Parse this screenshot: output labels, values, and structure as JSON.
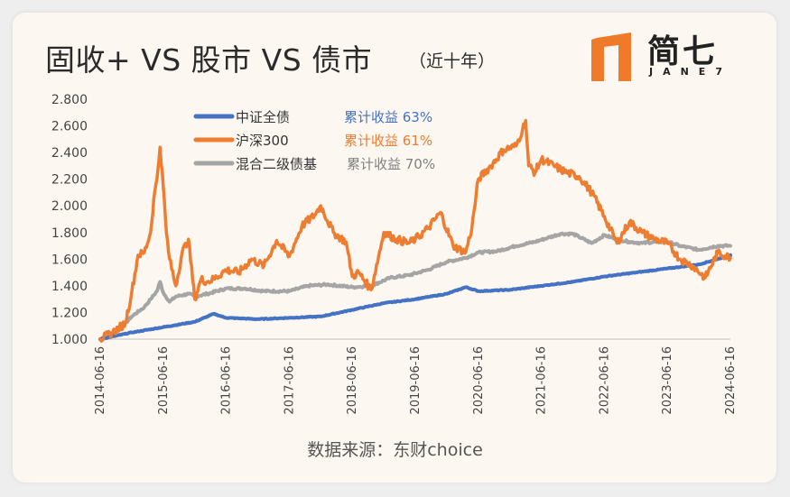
{
  "header": {
    "title": "固收+ VS 股市 VS 债市",
    "subtitle": "（近十年）"
  },
  "logo": {
    "name_cn": "简七",
    "name_en": "JANE7",
    "accent_color": "#ef7b2a"
  },
  "source": "数据来源：东财choice",
  "chart_data": {
    "type": "line",
    "title": "固收+ VS 股市 VS 债市（近十年）",
    "xlabel": "",
    "ylabel": "",
    "ylim": [
      1.0,
      2.8
    ],
    "yticks": [
      "1.000",
      "1.200",
      "1.400",
      "1.600",
      "1.800",
      "2.000",
      "2.200",
      "2.400",
      "2.600",
      "2.800"
    ],
    "xticks": [
      "2014-06-16",
      "2015-06-16",
      "2016-06-16",
      "2017-06-16",
      "2018-06-16",
      "2019-06-16",
      "2020-06-16",
      "2021-06-16",
      "2022-06-16",
      "2023-06-16",
      "2024-06-16"
    ],
    "grid": false,
    "legend_position": "top-left",
    "series": [
      {
        "name": "中证全债",
        "return_label": "累计收益 63%",
        "color": "#4472c4",
        "x": [
          0,
          0.5,
          1.0,
          1.5,
          1.8,
          2.0,
          2.5,
          3.0,
          3.5,
          4.0,
          4.5,
          5.0,
          5.5,
          5.8,
          6.0,
          6.5,
          7.0,
          7.5,
          8.0,
          8.5,
          9.0,
          9.5,
          10.0
        ],
        "values": [
          1.0,
          1.05,
          1.09,
          1.13,
          1.19,
          1.16,
          1.15,
          1.16,
          1.17,
          1.22,
          1.27,
          1.3,
          1.34,
          1.39,
          1.36,
          1.37,
          1.4,
          1.43,
          1.47,
          1.5,
          1.53,
          1.56,
          1.63
        ]
      },
      {
        "name": "沪深300",
        "return_label": "累计收益 61%",
        "color": "#ed7d31",
        "x": [
          0,
          0.2,
          0.4,
          0.5,
          0.6,
          0.7,
          0.8,
          0.85,
          0.9,
          0.95,
          1.0,
          1.05,
          1.1,
          1.2,
          1.3,
          1.4,
          1.5,
          1.6,
          1.7,
          1.8,
          2.0,
          2.2,
          2.4,
          2.6,
          2.8,
          3.0,
          3.2,
          3.4,
          3.5,
          3.7,
          3.9,
          4.0,
          4.1,
          4.3,
          4.5,
          4.7,
          4.9,
          5.0,
          5.2,
          5.4,
          5.6,
          5.8,
          5.9,
          6.0,
          6.2,
          6.4,
          6.6,
          6.7,
          6.75,
          6.8,
          6.9,
          7.0,
          7.2,
          7.4,
          7.6,
          7.8,
          8.0,
          8.2,
          8.4,
          8.6,
          8.8,
          9.0,
          9.2,
          9.4,
          9.6,
          9.8,
          10.0
        ],
        "values": [
          1.0,
          1.05,
          1.12,
          1.35,
          1.63,
          1.65,
          1.8,
          2.05,
          2.2,
          2.44,
          2.15,
          1.8,
          1.6,
          1.4,
          1.65,
          1.75,
          1.3,
          1.45,
          1.43,
          1.45,
          1.52,
          1.5,
          1.6,
          1.55,
          1.74,
          1.62,
          1.85,
          1.93,
          2.0,
          1.8,
          1.73,
          1.47,
          1.5,
          1.37,
          1.8,
          1.75,
          1.72,
          1.75,
          1.83,
          1.95,
          1.7,
          1.65,
          1.84,
          2.2,
          2.3,
          2.42,
          2.45,
          2.57,
          2.64,
          2.3,
          2.25,
          2.35,
          2.3,
          2.25,
          2.22,
          2.1,
          1.92,
          1.72,
          1.88,
          1.8,
          1.75,
          1.72,
          1.6,
          1.55,
          1.46,
          1.65,
          1.61
        ]
      },
      {
        "name": "混合二级债基",
        "return_label": "累计收益 70%",
        "color": "#a5a5a5",
        "x": [
          0,
          0.3,
          0.5,
          0.7,
          0.8,
          0.9,
          0.95,
          1.0,
          1.1,
          1.2,
          1.4,
          1.5,
          1.7,
          2.0,
          2.3,
          2.6,
          3.0,
          3.3,
          3.6,
          4.0,
          4.3,
          4.6,
          4.9,
          5.2,
          5.5,
          5.8,
          6.0,
          6.3,
          6.6,
          6.9,
          7.1,
          7.3,
          7.5,
          7.8,
          8.0,
          8.2,
          8.4,
          8.6,
          8.8,
          9.0,
          9.2,
          9.5,
          9.8,
          10.0
        ],
        "values": [
          1.0,
          1.07,
          1.17,
          1.24,
          1.3,
          1.36,
          1.43,
          1.35,
          1.28,
          1.32,
          1.34,
          1.32,
          1.34,
          1.38,
          1.38,
          1.36,
          1.36,
          1.4,
          1.41,
          1.39,
          1.4,
          1.46,
          1.48,
          1.52,
          1.58,
          1.61,
          1.65,
          1.66,
          1.7,
          1.73,
          1.76,
          1.79,
          1.79,
          1.72,
          1.78,
          1.75,
          1.73,
          1.72,
          1.73,
          1.73,
          1.7,
          1.67,
          1.7,
          1.7
        ]
      }
    ]
  }
}
